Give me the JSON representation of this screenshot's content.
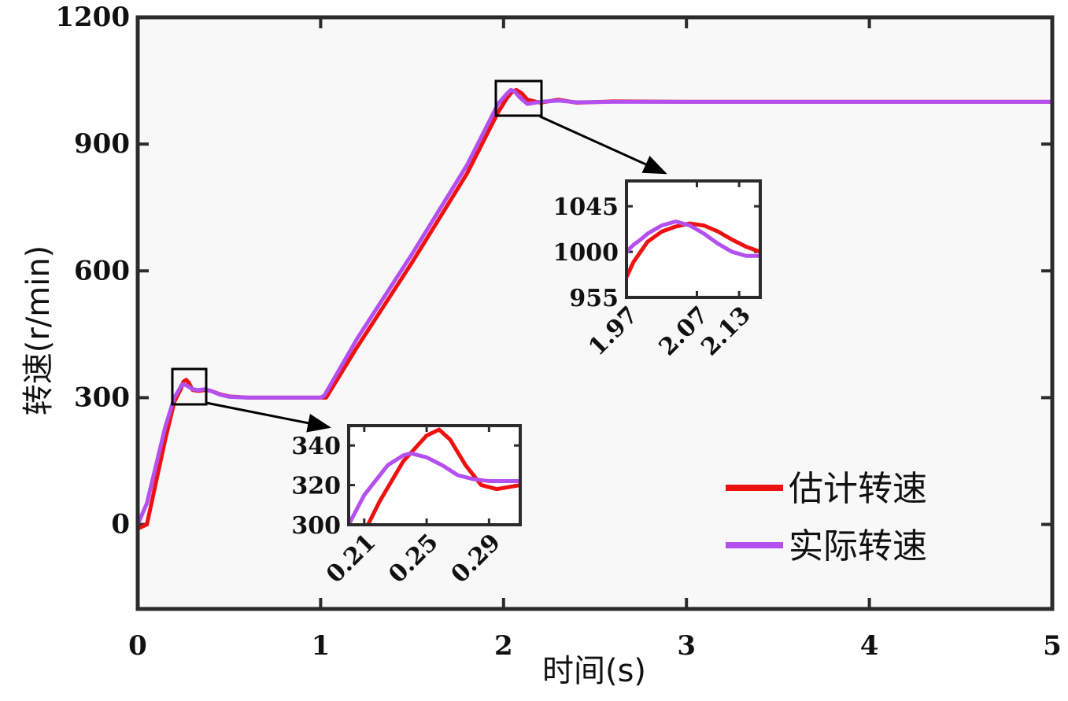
{
  "chart_data": [
    {
      "type": "line",
      "xlabel": "时间(s)",
      "ylabel": "转速(r/min)",
      "xlim": [
        0,
        5
      ],
      "ylim": [
        -200,
        1200
      ],
      "xticks": [
        "0",
        "1",
        "2",
        "3",
        "4",
        "5"
      ],
      "yticks": [
        "0",
        "300",
        "600",
        "900",
        "1200"
      ],
      "grid": false,
      "legend": "bottom-right",
      "series": [
        {
          "name": "估计转速",
          "color": "#ee1111",
          "x": [
            0,
            0.05,
            0.1,
            0.15,
            0.2,
            0.235,
            0.25,
            0.265,
            0.28,
            0.3,
            0.33,
            0.37,
            0.4,
            0.45,
            0.5,
            0.6,
            0.8,
            1.0,
            1.03,
            1.2,
            1.5,
            1.8,
            1.97,
            2.02,
            2.05,
            2.07,
            2.1,
            2.13,
            2.2,
            2.3,
            2.4,
            2.6,
            3.0,
            4.0,
            5.0
          ],
          "y": [
            -10,
            0,
            100,
            200,
            290,
            320,
            338,
            342,
            335,
            318,
            316,
            318,
            316,
            308,
            303,
            300,
            300,
            300,
            300,
            420,
            620,
            830,
            975,
            1010,
            1025,
            1028,
            1020,
            1005,
            998,
            1005,
            998,
            1001,
            1000,
            1000,
            1000
          ]
        },
        {
          "name": "实际转速",
          "color": "#b44ff0",
          "x": [
            0,
            0.05,
            0.1,
            0.15,
            0.2,
            0.225,
            0.24,
            0.25,
            0.27,
            0.3,
            0.33,
            0.37,
            0.4,
            0.45,
            0.5,
            0.6,
            0.8,
            1.0,
            1.02,
            1.2,
            1.5,
            1.8,
            1.97,
            2.02,
            2.04,
            2.06,
            2.09,
            2.13,
            2.2,
            2.3,
            2.4,
            2.6,
            3.0,
            4.0,
            5.0
          ],
          "y": [
            0,
            50,
            140,
            230,
            300,
            318,
            330,
            332,
            328,
            320,
            318,
            320,
            316,
            307,
            302,
            300,
            300,
            300,
            305,
            440,
            640,
            850,
            995,
            1020,
            1028,
            1025,
            1010,
            995,
            1000,
            1003,
            999,
            1000,
            1000,
            1000,
            1000
          ]
        }
      ]
    },
    {
      "type": "line",
      "inset": "lower",
      "xlim": [
        0.2,
        0.31
      ],
      "ylim": [
        300,
        350
      ],
      "xticks": [
        "0.21",
        "0.25",
        "0.29"
      ],
      "yticks": [
        "300",
        "320",
        "340"
      ],
      "series": [
        {
          "name": "估计转速",
          "color": "#ee1111",
          "x": [
            0.206,
            0.22,
            0.235,
            0.25,
            0.258,
            0.265,
            0.275,
            0.285,
            0.295,
            0.31
          ],
          "y": [
            290,
            312,
            332,
            345,
            348,
            343,
            330,
            320,
            318,
            320
          ]
        },
        {
          "name": "实际转速",
          "color": "#b44ff0",
          "x": [
            0.2,
            0.21,
            0.225,
            0.235,
            0.24,
            0.25,
            0.26,
            0.27,
            0.28,
            0.29,
            0.31
          ],
          "y": [
            300,
            315,
            330,
            335,
            336,
            334,
            330,
            325,
            323,
            322,
            322
          ]
        }
      ]
    },
    {
      "type": "line",
      "inset": "upper",
      "xlim": [
        1.97,
        2.16
      ],
      "ylim": [
        955,
        1070
      ],
      "xticks": [
        "1.97",
        "2.07",
        "2.13"
      ],
      "yticks": [
        "955",
        "1000",
        "1045"
      ],
      "series": [
        {
          "name": "估计转速",
          "color": "#ee1111",
          "x": [
            1.97,
            1.98,
            2.0,
            2.02,
            2.04,
            2.06,
            2.08,
            2.1,
            2.12,
            2.14,
            2.16
          ],
          "y": [
            975,
            990,
            1010,
            1020,
            1025,
            1028,
            1026,
            1020,
            1012,
            1005,
            1000
          ]
        },
        {
          "name": "实际转速",
          "color": "#b44ff0",
          "x": [
            1.97,
            1.98,
            1.99,
            2.0,
            2.02,
            2.04,
            2.06,
            2.08,
            2.1,
            2.12,
            2.14,
            2.16
          ],
          "y": [
            1000,
            1007,
            1012,
            1018,
            1026,
            1030,
            1026,
            1018,
            1008,
            1000,
            996,
            996
          ]
        }
      ]
    }
  ]
}
